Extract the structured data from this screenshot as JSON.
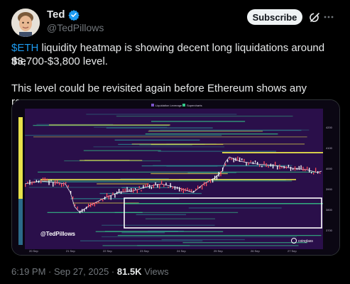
{
  "author": {
    "name": "Ted",
    "handle": "@TedPillows",
    "verified": true
  },
  "actions": {
    "subscribe_label": "Subscribe",
    "grok_icon": "grok-icon",
    "more_icon": "more-icon"
  },
  "tweet": {
    "cashtag": "$ETH",
    "line1_rest": " liquidity heatmap is showing decent long liquidations around the",
    "line2": "$3,700-$3,800 level.",
    "line3": "This level could be revisited again before Ethereum shows any recovery."
  },
  "chart": {
    "legend_liquidation": "Liquidation Leverage",
    "legend_supercharts": "Supercharts",
    "watermark": "@TedPillows",
    "brand": "coinglass",
    "price_labels": [
      "4200",
      "4100",
      "4000",
      "3900",
      "3800",
      "3700"
    ],
    "time_labels": [
      "20 Sep",
      "21 Sep",
      "22 Sep",
      "23 Sep",
      "24 Sep",
      "25 Sep",
      "26 Sep",
      "27 Sep"
    ],
    "colors": {
      "background": "#2a0f4a",
      "band_yellow": "#e8e14a",
      "band_green": "#34c98a",
      "band_teal": "#2b8d93",
      "candle_up": "#ffffff",
      "candle_down": "#ff4d5e",
      "box": "#ffffff"
    }
  },
  "meta": {
    "time": "6:19 PM · Sep 27, 2025 · ",
    "views_count": "81.5K",
    "views_label": " Views"
  }
}
